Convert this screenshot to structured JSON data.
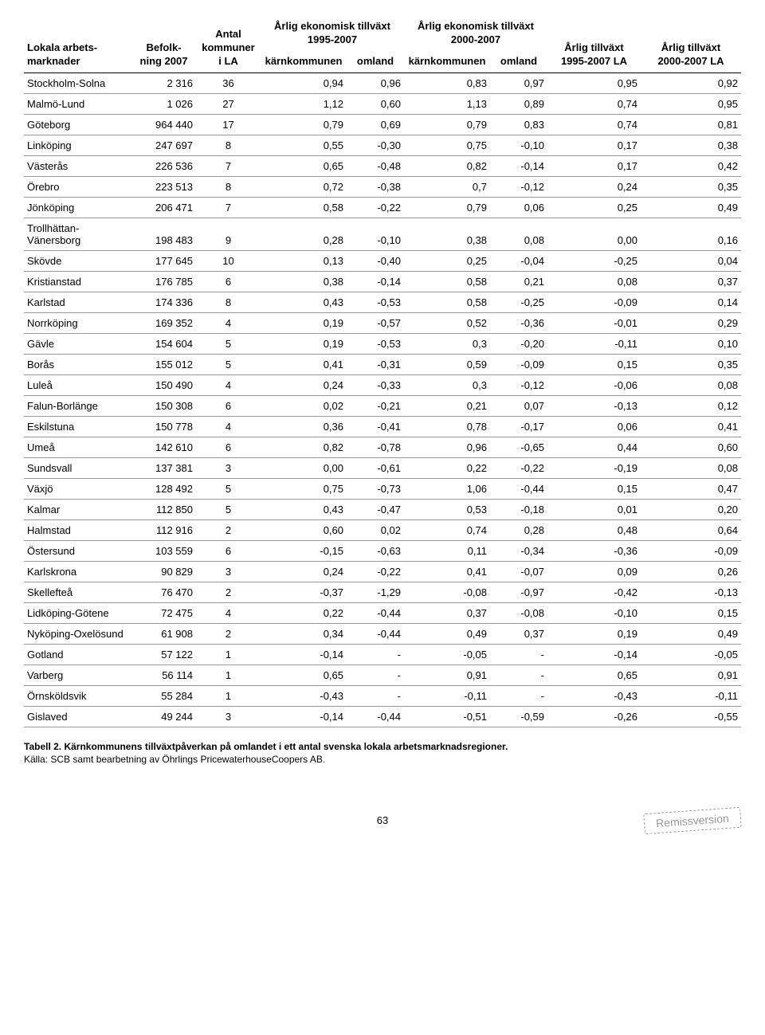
{
  "headers": {
    "col0_line1": "Lokala arbets-",
    "col0_line2": "marknader",
    "col1_line1": "Befolk-",
    "col1_line2": "ning 2007",
    "col2_line1": "Antal",
    "col2_line2": "kommuner",
    "col2_line3": "i LA",
    "group1_line1": "Årlig ekonomisk tillväxt",
    "group1_line2": "1995-2007",
    "group2_line1": "Årlig ekonomisk tillväxt",
    "group2_line2": "2000-2007",
    "sub_karn": "kärnkommunen",
    "sub_omland": "omland",
    "col7_line1": "Årlig tillväxt",
    "col7_line2": "1995-2007 LA",
    "col8_line1": "Årlig tillväxt",
    "col8_line2": "2000-2007 LA"
  },
  "rows": [
    [
      "Stockholm-Solna",
      "2 316",
      "36",
      "0,94",
      "0,96",
      "0,83",
      "0,97",
      "0,95",
      "0,92"
    ],
    [
      "Malmö-Lund",
      "1 026",
      "27",
      "1,12",
      "0,60",
      "1,13",
      "0,89",
      "0,74",
      "0,95"
    ],
    [
      "Göteborg",
      "964 440",
      "17",
      "0,79",
      "0,69",
      "0,79",
      "0,83",
      "0,74",
      "0,81"
    ],
    [
      "Linköping",
      "247 697",
      "8",
      "0,55",
      "-0,30",
      "0,75",
      "-0,10",
      "0,17",
      "0,38"
    ],
    [
      "Västerås",
      "226 536",
      "7",
      "0,65",
      "-0,48",
      "0,82",
      "-0,14",
      "0,17",
      "0,42"
    ],
    [
      "Örebro",
      "223 513",
      "8",
      "0,72",
      "-0,38",
      "0,7",
      "-0,12",
      "0,24",
      "0,35"
    ],
    [
      "Jönköping",
      "206 471",
      "7",
      "0,58",
      "-0,22",
      "0,79",
      "0,06",
      "0,25",
      "0,49"
    ],
    [
      "Trollhättan-Vänersborg",
      "198 483",
      "9",
      "0,28",
      "-0,10",
      "0,38",
      "0,08",
      "0,00",
      "0,16"
    ],
    [
      "Skövde",
      "177 645",
      "10",
      "0,13",
      "-0,40",
      "0,25",
      "-0,04",
      "-0,25",
      "0,04"
    ],
    [
      "Kristianstad",
      "176 785",
      "6",
      "0,38",
      "-0,14",
      "0,58",
      "0,21",
      "0,08",
      "0,37"
    ],
    [
      "Karlstad",
      "174 336",
      "8",
      "0,43",
      "-0,53",
      "0,58",
      "-0,25",
      "-0,09",
      "0,14"
    ],
    [
      "Norrköping",
      "169 352",
      "4",
      "0,19",
      "-0,57",
      "0,52",
      "-0,36",
      "-0,01",
      "0,29"
    ],
    [
      "Gävle",
      "154 604",
      "5",
      "0,19",
      "-0,53",
      "0,3",
      "-0,20",
      "-0,11",
      "0,10"
    ],
    [
      "Borås",
      "155 012",
      "5",
      "0,41",
      "-0,31",
      "0,59",
      "-0,09",
      "0,15",
      "0,35"
    ],
    [
      "Luleå",
      "150 490",
      "4",
      "0,24",
      "-0,33",
      "0,3",
      "-0,12",
      "-0,06",
      "0,08"
    ],
    [
      "Falun-Borlänge",
      "150 308",
      "6",
      "0,02",
      "-0,21",
      "0,21",
      "0,07",
      "-0,13",
      "0,12"
    ],
    [
      "Eskilstuna",
      "150 778",
      "4",
      "0,36",
      "-0,41",
      "0,78",
      "-0,17",
      "0,06",
      "0,41"
    ],
    [
      "Umeå",
      "142 610",
      "6",
      "0,82",
      "-0,78",
      "0,96",
      "-0,65",
      "0,44",
      "0,60"
    ],
    [
      "Sundsvall",
      "137 381",
      "3",
      "0,00",
      "-0,61",
      "0,22",
      "-0,22",
      "-0,19",
      "0,08"
    ],
    [
      "Växjö",
      "128 492",
      "5",
      "0,75",
      "-0,73",
      "1,06",
      "-0,44",
      "0,15",
      "0,47"
    ],
    [
      "Kalmar",
      "112 850",
      "5",
      "0,43",
      "-0,47",
      "0,53",
      "-0,18",
      "0,01",
      "0,20"
    ],
    [
      "Halmstad",
      "112 916",
      "2",
      "0,60",
      "0,02",
      "0,74",
      "0,28",
      "0,48",
      "0,64"
    ],
    [
      "Östersund",
      "103 559",
      "6",
      "-0,15",
      "-0,63",
      "0,11",
      "-0,34",
      "-0,36",
      "-0,09"
    ],
    [
      "Karlskrona",
      "90 829",
      "3",
      "0,24",
      "-0,22",
      "0,41",
      "-0,07",
      "0,09",
      "0,26"
    ],
    [
      "Skellefteå",
      "76 470",
      "2",
      "-0,37",
      "-1,29",
      "-0,08",
      "-0,97",
      "-0,42",
      "-0,13"
    ],
    [
      "Lidköping-Götene",
      "72 475",
      "4",
      "0,22",
      "-0,44",
      "0,37",
      "-0,08",
      "-0,10",
      "0,15"
    ],
    [
      "Nyköping-Oxelösund",
      "61 908",
      "2",
      "0,34",
      "-0,44",
      "0,49",
      "0,37",
      "0,19",
      "0,49"
    ],
    [
      "Gotland",
      "57 122",
      "1",
      "-0,14",
      "-",
      "-0,05",
      "-",
      "-0,14",
      "-0,05"
    ],
    [
      "Varberg",
      "56 114",
      "1",
      "0,65",
      "-",
      "0,91",
      "-",
      "0,65",
      "0,91"
    ],
    [
      "Örnsköldsvik",
      "55 284",
      "1",
      "-0,43",
      "-",
      "-0,11",
      "-",
      "-0,43",
      "-0,11"
    ],
    [
      "Gislaved",
      "49 244",
      "3",
      "-0,14",
      "-0,44",
      "-0,51",
      "-0,59",
      "-0,26",
      "-0,55"
    ]
  ],
  "caption": {
    "bold": "Tabell 2. Kärnkommunens tillväxtpåverkan på omlandet i ett antal svenska lokala arbetsmarknadsregioner.",
    "line2": "Källa: SCB samt bearbetning av Öhrlings PricewaterhouseCoopers AB."
  },
  "pagenum": "63",
  "stamp": "Remissversion"
}
